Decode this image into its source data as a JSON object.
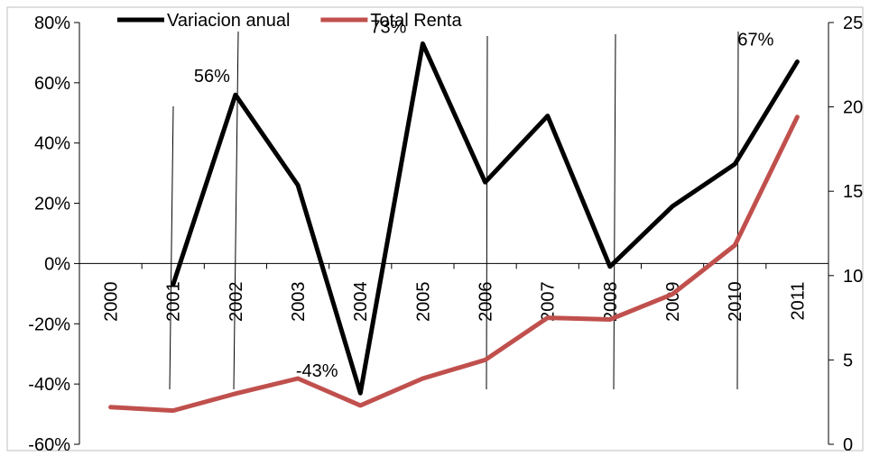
{
  "chart_data": {
    "type": "line",
    "categories": [
      "2000",
      "2001",
      "2002",
      "2003",
      "2004",
      "2005",
      "2006",
      "2007",
      "2008",
      "2009",
      "2010",
      "2011"
    ],
    "series": [
      {
        "name": "Variacion anual",
        "axis": "left",
        "color": "#000000",
        "values": [
          null,
          -0.07,
          0.56,
          0.26,
          -0.43,
          0.73,
          0.27,
          0.49,
          -0.01,
          0.19,
          0.33,
          0.67
        ]
      },
      {
        "name": "Total Renta",
        "axis": "right",
        "color": "#c0504d",
        "values": [
          2.2,
          2.0,
          3.0,
          3.9,
          2.3,
          3.9,
          5.0,
          7.5,
          7.4,
          8.9,
          11.8,
          19.4
        ]
      }
    ],
    "y_left": {
      "range": [
        -0.6,
        0.8
      ],
      "ticks": [
        {
          "value": 0.8,
          "label": "80%"
        },
        {
          "value": 0.6,
          "label": "60%"
        },
        {
          "value": 0.4,
          "label": "40%"
        },
        {
          "value": 0.2,
          "label": "20%"
        },
        {
          "value": 0.0,
          "label": "0%"
        },
        {
          "value": -0.2,
          "label": "-20%"
        },
        {
          "value": -0.4,
          "label": "-40%"
        },
        {
          "value": -0.6,
          "label": "-60%"
        }
      ]
    },
    "y_right": {
      "range": [
        0,
        25
      ],
      "ticks": [
        {
          "value": 25,
          "label": "25"
        },
        {
          "value": 20,
          "label": "20"
        },
        {
          "value": 15,
          "label": "15"
        },
        {
          "value": 10,
          "label": "10"
        },
        {
          "value": 5,
          "label": "5"
        },
        {
          "value": 0,
          "label": "0"
        }
      ]
    },
    "data_labels": [
      {
        "category": "2002",
        "value": 0.56,
        "text": "56%"
      },
      {
        "category": "2004",
        "value": -0.43,
        "text": "-43%"
      },
      {
        "category": "2005",
        "value": 0.73,
        "text": "73%"
      },
      {
        "category": "2011",
        "value": 0.67,
        "text": "67%"
      }
    ],
    "legend": {
      "placement": "top"
    },
    "grid": false
  }
}
